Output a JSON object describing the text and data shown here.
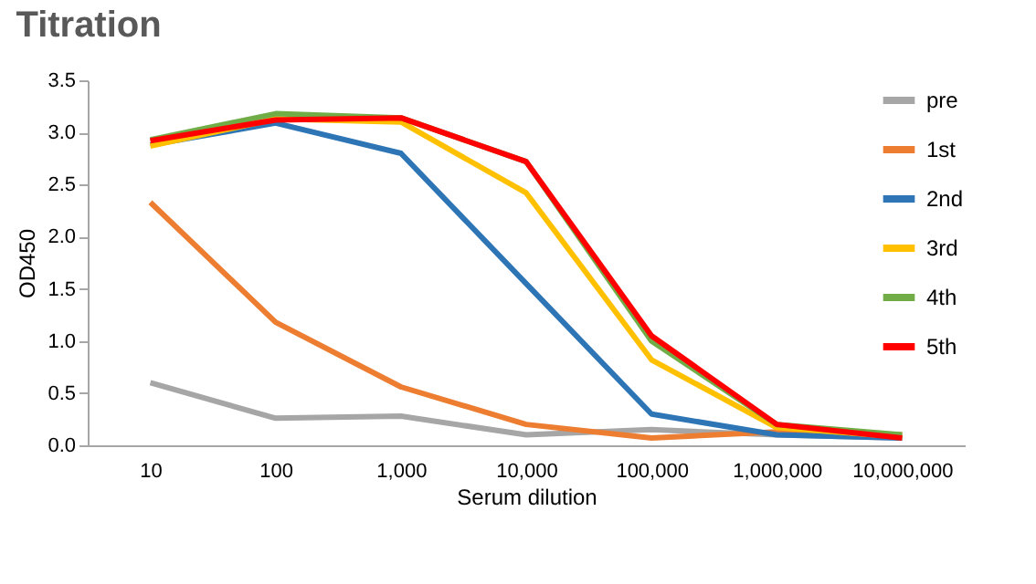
{
  "chart_data": {
    "type": "line",
    "title": "Titration",
    "xlabel": "Serum dilution",
    "ylabel": "OD450",
    "categories": [
      "10",
      "100",
      "1,000",
      "10,000",
      "100,000",
      "1,000,000",
      "10,000,000"
    ],
    "series": [
      {
        "name": "pre",
        "color": "#a6a6a6",
        "values": [
          0.6,
          0.26,
          0.28,
          0.1,
          0.15,
          0.1,
          0.07
        ]
      },
      {
        "name": "1st",
        "color": "#ed7d31",
        "values": [
          2.33,
          1.18,
          0.56,
          0.2,
          0.07,
          0.13,
          0.1
        ]
      },
      {
        "name": "2nd",
        "color": "#2e75b6",
        "values": [
          2.88,
          3.09,
          2.8,
          1.55,
          0.3,
          0.1,
          0.07
        ]
      },
      {
        "name": "3rd",
        "color": "#ffc000",
        "values": [
          2.87,
          3.13,
          3.1,
          2.42,
          0.82,
          0.17,
          0.08
        ]
      },
      {
        "name": "4th",
        "color": "#70ad47",
        "values": [
          2.93,
          3.18,
          3.14,
          2.72,
          1.0,
          0.2,
          0.1
        ]
      },
      {
        "name": "5th",
        "color": "#ff0000",
        "values": [
          2.92,
          3.12,
          3.14,
          2.72,
          1.05,
          0.2,
          0.07
        ]
      }
    ],
    "ylim": [
      0,
      3.5
    ],
    "yticks": [
      {
        "value": 0,
        "label": "0.0"
      },
      0.5,
      {
        "value": 1,
        "label": "1.0"
      },
      1.5,
      {
        "value": 2,
        "label": "2.0"
      },
      2.5,
      {
        "value": 3,
        "label": "3.0"
      },
      3.5
    ],
    "grid": false,
    "legend": "top right",
    "marker": "none",
    "line_style": "solid"
  }
}
